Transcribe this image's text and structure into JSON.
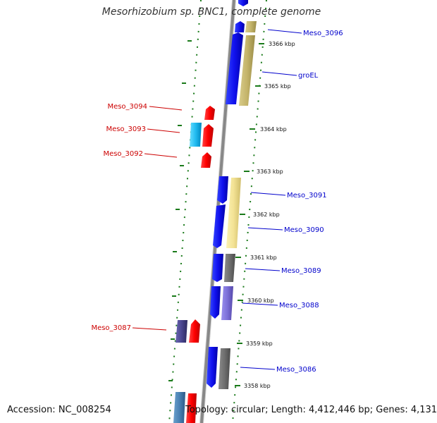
{
  "title": "Mesorhizobium sp. BNC1, complete genome",
  "footer": {
    "accession": "Accession: NC_008254",
    "summary": "Topology: circular; Length: 4,412,446 bp; Genes: 4,131"
  },
  "colors": {
    "forward_gene": "#ff0000",
    "reverse_gene": "#0000ee",
    "backbone": "#888888",
    "tick": "#1a7a1a",
    "left_label": "#cc0000",
    "right_label": "#0000cc"
  },
  "ticks": [
    "3366 kbp",
    "3365 kbp",
    "3364 kbp",
    "3363 kbp",
    "3362 kbp",
    "3361 kbp",
    "3360 kbp",
    "3359 kbp",
    "3358 kbp"
  ],
  "right_genes": [
    "Meso_3096",
    "groEL",
    "Meso_3091",
    "Meso_3090",
    "Meso_3089",
    "Meso_3088",
    "Meso_3086"
  ],
  "left_genes": [
    "Meso_3094",
    "Meso_3093",
    "Meso_3092",
    "Meso_3087"
  ]
}
